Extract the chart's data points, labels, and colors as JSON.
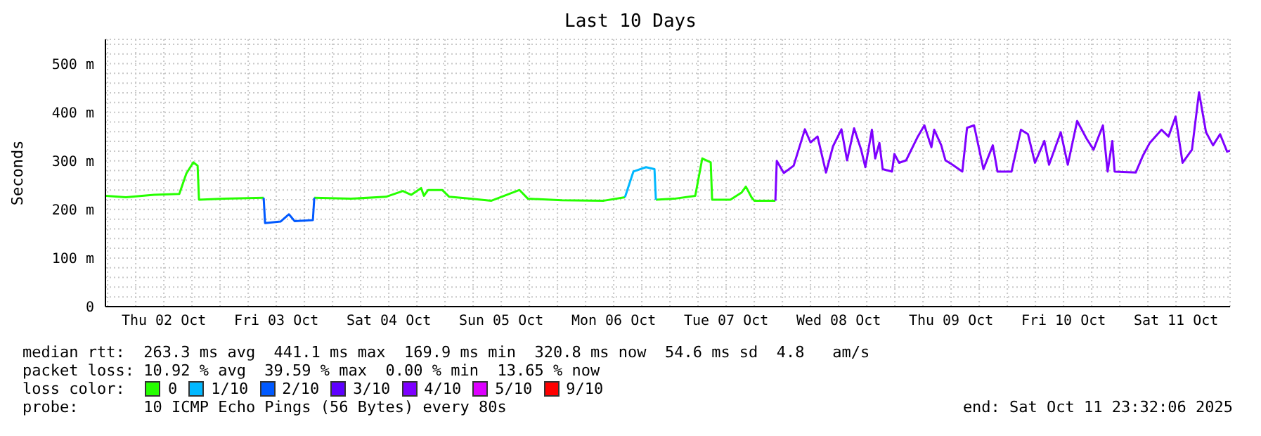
{
  "chart_data": {
    "type": "line",
    "title": "Last 10 Days",
    "ylabel": "Seconds",
    "xlim": [
      "2025-10-01T23:32",
      "2025-10-11T23:32"
    ],
    "xticks": [
      {
        "value": "2025-10-02T00:00",
        "label": null
      },
      {
        "value": "2025-10-02T06:00",
        "label": null
      },
      {
        "value": "2025-10-02T12:00",
        "label": "Thu 02 Oct"
      },
      {
        "value": "2025-10-02T18:00",
        "label": null
      },
      {
        "value": "2025-10-03T00:00",
        "label": null
      },
      {
        "value": "2025-10-03T06:00",
        "label": null
      },
      {
        "value": "2025-10-03T12:00",
        "label": "Fri 03 Oct"
      },
      {
        "value": "2025-10-03T18:00",
        "label": null
      },
      {
        "value": "2025-10-04T00:00",
        "label": null
      },
      {
        "value": "2025-10-04T06:00",
        "label": null
      },
      {
        "value": "2025-10-04T12:00",
        "label": "Sat 04 Oct"
      },
      {
        "value": "2025-10-04T18:00",
        "label": null
      },
      {
        "value": "2025-10-05T00:00",
        "label": null
      },
      {
        "value": "2025-10-05T06:00",
        "label": null
      },
      {
        "value": "2025-10-05T12:00",
        "label": "Sun 05 Oct"
      },
      {
        "value": "2025-10-05T18:00",
        "label": null
      },
      {
        "value": "2025-10-06T00:00",
        "label": null
      },
      {
        "value": "2025-10-06T06:00",
        "label": null
      },
      {
        "value": "2025-10-06T12:00",
        "label": "Mon 06 Oct"
      },
      {
        "value": "2025-10-06T18:00",
        "label": null
      },
      {
        "value": "2025-10-07T00:00",
        "label": null
      },
      {
        "value": "2025-10-07T06:00",
        "label": null
      },
      {
        "value": "2025-10-07T12:00",
        "label": "Tue 07 Oct"
      },
      {
        "value": "2025-10-07T18:00",
        "label": null
      },
      {
        "value": "2025-10-08T00:00",
        "label": null
      },
      {
        "value": "2025-10-08T06:00",
        "label": null
      },
      {
        "value": "2025-10-08T12:00",
        "label": "Wed 08 Oct"
      },
      {
        "value": "2025-10-08T18:00",
        "label": null
      },
      {
        "value": "2025-10-09T00:00",
        "label": null
      },
      {
        "value": "2025-10-09T06:00",
        "label": null
      },
      {
        "value": "2025-10-09T12:00",
        "label": "Thu 09 Oct"
      },
      {
        "value": "2025-10-09T18:00",
        "label": null
      },
      {
        "value": "2025-10-10T00:00",
        "label": null
      },
      {
        "value": "2025-10-10T06:00",
        "label": null
      },
      {
        "value": "2025-10-10T12:00",
        "label": "Fri 10 Oct"
      },
      {
        "value": "2025-10-10T18:00",
        "label": null
      },
      {
        "value": "2025-10-11T00:00",
        "label": null
      },
      {
        "value": "2025-10-11T06:00",
        "label": null
      },
      {
        "value": "2025-10-11T12:00",
        "label": "Sat 11 Oct"
      },
      {
        "value": "2025-10-11T18:00",
        "label": null
      }
    ],
    "ylim": [
      0,
      550
    ],
    "yticks": [
      0,
      {
        "value": 20,
        "label": null
      },
      {
        "value": 40,
        "label": null
      },
      {
        "value": 60,
        "label": null
      },
      {
        "value": 80,
        "label": null
      },
      {
        "value": 100,
        "label": "100 m"
      },
      {
        "value": 120,
        "label": null
      },
      {
        "value": 140,
        "label": null
      },
      {
        "value": 160,
        "label": null
      },
      {
        "value": 180,
        "label": null
      },
      {
        "value": 200,
        "label": "200 m"
      },
      {
        "value": 220,
        "label": null
      },
      {
        "value": 240,
        "label": null
      },
      {
        "value": 260,
        "label": null
      },
      {
        "value": 280,
        "label": null
      },
      {
        "value": 300,
        "label": "300 m"
      },
      {
        "value": 320,
        "label": null
      },
      {
        "value": 340,
        "label": null
      },
      {
        "value": 360,
        "label": null
      },
      {
        "value": 380,
        "label": null
      },
      {
        "value": 400,
        "label": "400 m"
      },
      {
        "value": 420,
        "label": null
      },
      {
        "value": 440,
        "label": null
      },
      {
        "value": 460,
        "label": null
      },
      {
        "value": 480,
        "label": null
      },
      {
        "value": 500,
        "label": "500 m"
      },
      {
        "value": 520,
        "label": null
      },
      {
        "value": 540,
        "label": null
      }
    ],
    "grid": true,
    "legend": "bottom",
    "legend_title": "loss color:",
    "series": [
      {
        "name": "0",
        "color": "#26ff00",
        "x": [
          "2025-10-01T23:40",
          "2025-10-02T03:54",
          "2025-10-02T09:54",
          "2025-10-02T15:18",
          "2025-10-02T16:48",
          "2025-10-02T18:18",
          "2025-10-02T19:12",
          "2025-10-02T19:30",
          "2025-10-03T00:54",
          "2025-10-03T09:18",
          "2025-10-03T12:54",
          "2025-10-03T20:06",
          "2025-10-04T03:54",
          "2025-10-04T11:24",
          "2025-10-04T15:00",
          "2025-10-04T16:48",
          "2025-10-04T18:54",
          "2025-10-04T19:30",
          "2025-10-04T20:24",
          "2025-10-04T23:24",
          "2025-10-05T00:54",
          "2025-10-05T05:24",
          "2025-10-05T09:54",
          "2025-10-05T15:54",
          "2025-10-05T17:42",
          "2025-10-06T00:54",
          "2025-10-06T09:54",
          "2025-10-06T14:24",
          "2025-10-06T16:12",
          "2025-10-06T21:00",
          "2025-10-07T00:54",
          "2025-10-07T05:24",
          "2025-10-07T06:54",
          "2025-10-07T08:42",
          "2025-10-07T09:00",
          "2025-10-07T12:54",
          "2025-10-07T15:18",
          "2025-10-07T16:12",
          "2025-10-07T17:24",
          "2025-10-07T18:00",
          "2025-10-07T22:30"
        ],
        "values": [
          228,
          225,
          230,
          232,
          274,
          297,
          290,
          220,
          222,
          224,
          null,
          224,
          222,
          226,
          238,
          230,
          244,
          228,
          240,
          240,
          226,
          222,
          218,
          240,
          222,
          219,
          218,
          225,
          null,
          220,
          222,
          228,
          305,
          297,
          220,
          220,
          235,
          247,
          225,
          218,
          218
        ]
      },
      {
        "name": "1/10",
        "color": "#00b8ff",
        "x": [
          "2025-10-06T14:24",
          "2025-10-06T16:12",
          "2025-10-06T18:54",
          "2025-10-06T20:42",
          "2025-10-06T21:00"
        ],
        "values": [
          225,
          278,
          287,
          283,
          220
        ]
      },
      {
        "name": "2/10",
        "color": "#0059ff",
        "x": [
          "2025-10-03T09:18",
          "2025-10-03T09:36",
          "2025-10-03T12:54",
          "2025-10-03T14:42",
          "2025-10-03T15:54",
          "2025-10-03T19:48",
          "2025-10-03T20:06"
        ],
        "values": [
          224,
          172,
          175,
          190,
          176,
          178,
          224
        ]
      },
      {
        "name": "3/10",
        "color": "#5e00ff"
      },
      {
        "name": "4/10",
        "color": "#7e00ff",
        "x": [
          "2025-10-07T22:30",
          "2025-10-07T22:48",
          "2025-10-08T00:18",
          "2025-10-08T02:24",
          "2025-10-08T04:48",
          "2025-10-08T06:00",
          "2025-10-08T07:30",
          "2025-10-08T09:18",
          "2025-10-08T10:48",
          "2025-10-08T12:36",
          "2025-10-08T13:48",
          "2025-10-08T15:18",
          "2025-10-08T16:48",
          "2025-10-08T17:42",
          "2025-10-08T19:06",
          "2025-10-08T19:48",
          "2025-10-08T20:42",
          "2025-10-08T21:24",
          "2025-10-08T23:24",
          "2025-10-08T23:54",
          "2025-10-09T00:54",
          "2025-10-09T02:24",
          "2025-10-09T04:54",
          "2025-10-09T06:18",
          "2025-10-09T07:48",
          "2025-10-09T08:24",
          "2025-10-09T09:54",
          "2025-10-09T10:48",
          "2025-10-09T12:18",
          "2025-10-09T14:24",
          "2025-10-09T15:24",
          "2025-10-09T16:54",
          "2025-10-09T18:54",
          "2025-10-09T20:54",
          "2025-10-09T21:54",
          "2025-10-10T00:54",
          "2025-10-10T02:54",
          "2025-10-10T04:24",
          "2025-10-10T05:54",
          "2025-10-10T07:54",
          "2025-10-10T08:54",
          "2025-10-10T11:24",
          "2025-10-10T12:54",
          "2025-10-10T14:54",
          "2025-10-10T16:54",
          "2025-10-10T18:24",
          "2025-10-10T20:24",
          "2025-10-10T21:24",
          "2025-10-10T22:24",
          "2025-10-10T22:54",
          "2025-10-11T03:24",
          "2025-10-11T04:54",
          "2025-10-11T06:24",
          "2025-10-11T08:54",
          "2025-10-11T10:24",
          "2025-10-11T11:54",
          "2025-10-11T13:24",
          "2025-10-11T15:24",
          "2025-10-11T16:54",
          "2025-10-11T18:24",
          "2025-10-11T19:54",
          "2025-10-11T21:24",
          "2025-10-11T22:54",
          "2025-10-11T23:30"
        ],
        "values": [
          218,
          300,
          275,
          290,
          365,
          338,
          350,
          276,
          330,
          365,
          301,
          367,
          323,
          287,
          364,
          305,
          337,
          283,
          278,
          314,
          296,
          301,
          350,
          373,
          328,
          364,
          332,
          301,
          292,
          278,
          368,
          373,
          283,
          332,
          278,
          278,
          364,
          355,
          296,
          341,
          292,
          359,
          292,
          382,
          346,
          323,
          373,
          278,
          341,
          278,
          276,
          310,
          337,
          364,
          350,
          391,
          296,
          323,
          441,
          359,
          332,
          355,
          319,
          321
        ]
      },
      {
        "name": "5/10",
        "color": "#dd00ff"
      },
      {
        "name": "9/10",
        "color": "#ff0000"
      }
    ],
    "annotations": [
      "median rtt:  263.3 ms avg  441.1 ms max  169.9 ms min  320.8 ms now  54.6 ms sd  4.8   am/s",
      "packet loss: 10.92 % avg  39.59 % max  0.00 % min  13.65 % now",
      "probe:       10 ICMP Echo Pings (56 Bytes) every 80s",
      "end: Sat Oct 11 23:32:06 2025"
    ]
  }
}
